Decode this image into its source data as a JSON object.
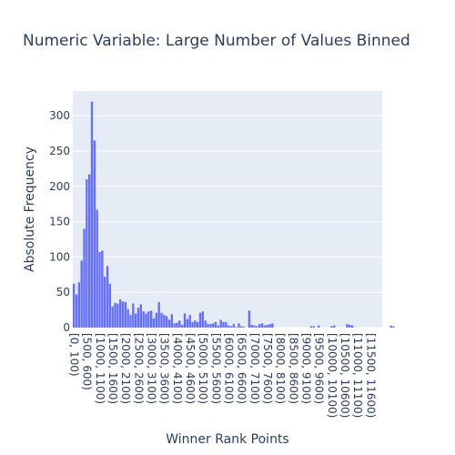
{
  "chart_data": {
    "type": "bar",
    "title": "Numeric Variable: Large Number of Values Binned",
    "xlabel": "Winner Rank Points",
    "ylabel": "Absolute Frequency",
    "ylim": [
      0,
      335
    ],
    "yticks": [
      0,
      50,
      100,
      150,
      200,
      250,
      300
    ],
    "bin_width": 100,
    "xlim": [
      0,
      12000
    ],
    "xtick_labels": [
      "[0, 100)",
      "[500, 600)",
      "[1000, 1100)",
      "[1500, 1600)",
      "[2000, 2100)",
      "[2500, 2600)",
      "[3000, 3100)",
      "[3500, 3600)",
      "[4000, 4100)",
      "[4500, 4600)",
      "[5000, 5100)",
      "[5500, 5600)",
      "[6000, 6100)",
      "[6500, 6600)",
      "[7000, 7100)",
      "[7500, 7600)",
      "[8000, 8100)",
      "[8500, 8600)",
      "[9000, 9100)",
      "[9500, 9600)",
      "[10000, 10100)",
      "[10500, 10600)",
      "[11000, 11100)",
      "[11500, 11600)"
    ],
    "values": [
      62,
      47,
      64,
      95,
      140,
      210,
      217,
      320,
      265,
      167,
      107,
      109,
      72,
      87,
      62,
      30,
      35,
      34,
      40,
      37,
      36,
      26,
      18,
      34,
      20,
      28,
      33,
      23,
      20,
      23,
      24,
      13,
      21,
      36,
      21,
      18,
      16,
      11,
      19,
      6,
      7,
      10,
      4,
      20,
      12,
      18,
      8,
      10,
      8,
      21,
      23,
      10,
      5,
      5,
      6,
      8,
      3,
      11,
      8,
      8,
      3,
      2,
      5,
      1,
      6,
      2,
      1,
      0,
      24,
      4,
      3,
      2,
      5,
      6,
      3,
      4,
      5,
      6,
      0,
      0,
      0,
      0,
      0,
      0,
      0,
      0,
      0,
      0,
      0,
      0,
      0,
      0,
      2,
      2,
      0,
      3,
      0,
      0,
      0,
      0,
      2,
      3,
      0,
      0,
      0,
      0,
      5,
      4,
      3,
      0,
      0,
      0,
      0,
      0,
      0,
      0,
      0,
      0,
      0,
      0,
      0,
      0,
      0,
      3,
      2,
      0,
      0,
      0,
      0,
      0
    ],
    "bar_color": "#636efa",
    "plot_bgcolor": "#e5ecf6",
    "gridlines": true,
    "legend": "none"
  }
}
